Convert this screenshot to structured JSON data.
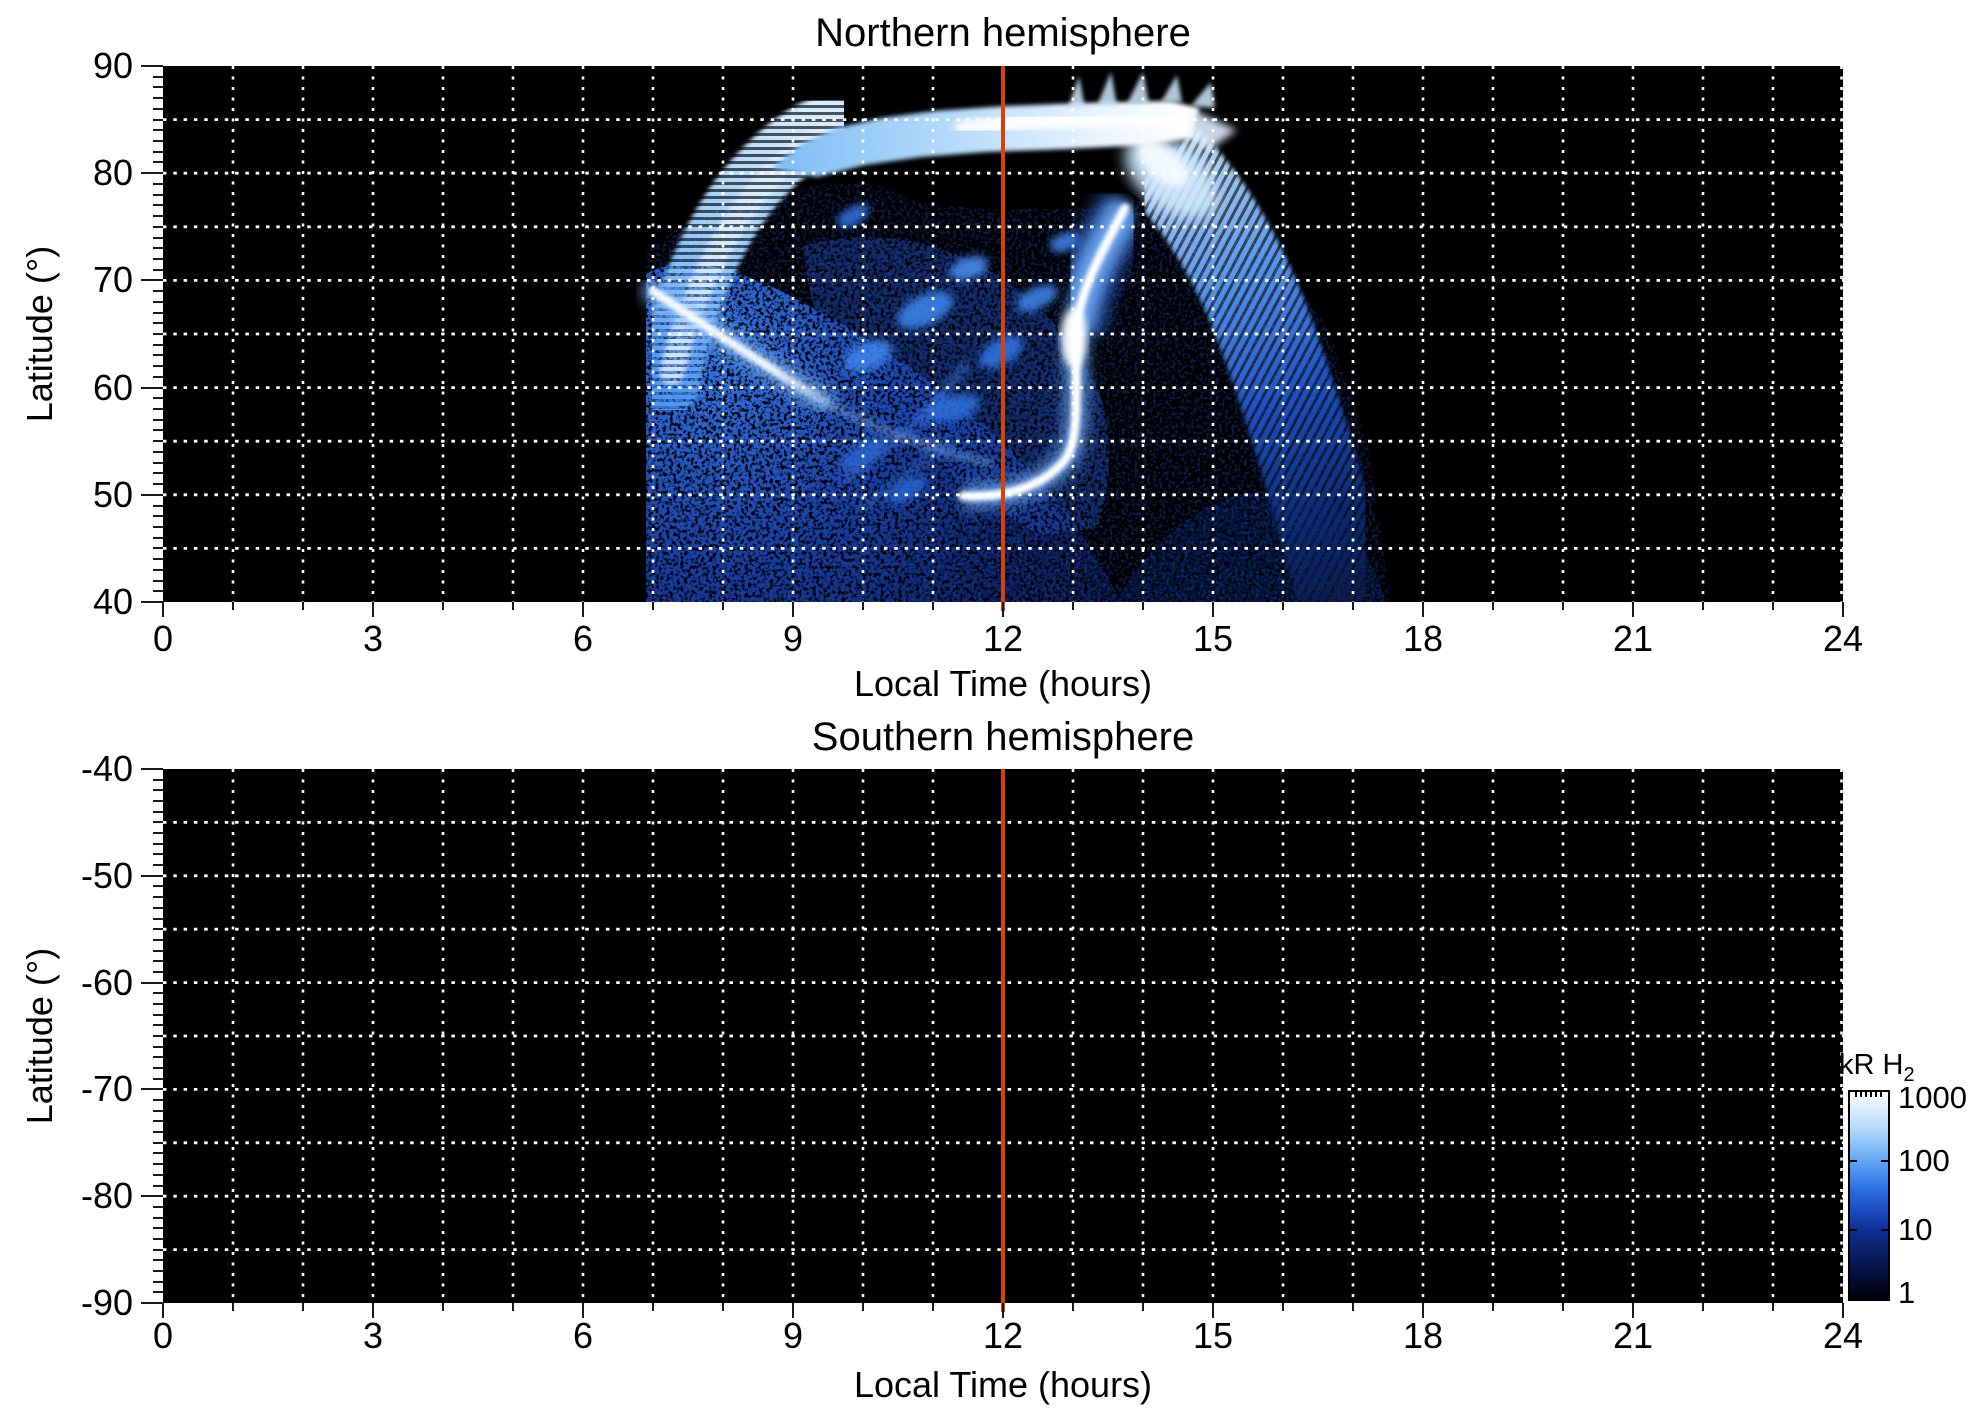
{
  "north": {
    "title": "Northern hemisphere",
    "xlabel": "Local Time (hours)",
    "ylabel": "Latitude (°)",
    "x_tick_labels": [
      "0",
      "3",
      "6",
      "9",
      "12",
      "15",
      "18",
      "21",
      "24"
    ],
    "y_tick_labels": [
      "90",
      "80",
      "70",
      "60",
      "50",
      "40"
    ]
  },
  "south": {
    "title": "Southern hemisphere",
    "xlabel": "Local Time (hours)",
    "ylabel": "Latitude (°)",
    "x_tick_labels": [
      "0",
      "3",
      "6",
      "9",
      "12",
      "15",
      "18",
      "21",
      "24"
    ],
    "y_tick_labels": [
      "-40",
      "-50",
      "-60",
      "-70",
      "-80",
      "-90"
    ]
  },
  "colorbar": {
    "title": "kR H",
    "title_subscript": "2",
    "tick_labels": [
      "1000",
      "100",
      "10",
      "1"
    ],
    "scale": "log",
    "min": 1,
    "max": 1000
  },
  "colors": {
    "background": "#ffffff",
    "plot_background": "#000000",
    "grid_dots": "#ffffff",
    "noon_line": "#d8400a",
    "text": "#000000"
  },
  "chart_data": [
    {
      "type": "heatmap",
      "title": "Northern hemisphere",
      "xlabel": "Local Time (hours)",
      "ylabel": "Latitude (°)",
      "xlim": [
        0,
        24
      ],
      "ylim": [
        40,
        90
      ],
      "x_ticks": [
        0,
        3,
        6,
        9,
        12,
        15,
        18,
        21,
        24
      ],
      "y_ticks": [
        90,
        80,
        70,
        60,
        50,
        40
      ],
      "grid": {
        "style": "dotted white",
        "x_spacing_hours": 1,
        "y_spacing_deg": 5
      },
      "colorbar": {
        "label": "kR H2",
        "scale": "log",
        "min": 1,
        "max": 1000
      },
      "annotations": [
        {
          "type": "vertical-line",
          "x_hours": 12,
          "color": "#d8400a"
        }
      ],
      "features": [
        {
          "name": "diffuse-emission-floor",
          "local_time_hours": [
            6.9,
            14.5
          ],
          "latitude_deg": [
            40,
            60
          ],
          "intensity_kR": "1-20",
          "texture": "speckled"
        },
        {
          "name": "dawn-fan-arc",
          "path": "(7.0 h, 62°) rising to (9.2 h, 85°)",
          "intensity_kR": "100-600",
          "texture": "latitudinal striations"
        },
        {
          "name": "bright-ridge",
          "path": "(7.3 h, 68°) to (9.5 h, 59°), faint continuation to (11.4 h, 51°)",
          "intensity_kR": "~1000"
        },
        {
          "name": "polar-cap-strip",
          "local_time_hours": [
            8.7,
            14.7
          ],
          "latitude_deg": [
            83,
            86.5
          ],
          "intensity_kR": "200-1000",
          "note": "white core 11-14 h, jagged striated edges"
        },
        {
          "name": "dark-polar-region",
          "local_time_hours": [
            10.0,
            14.0
          ],
          "latitude_deg": [
            77,
            83
          ],
          "intensity_kR": "<1"
        },
        {
          "name": "sinuous-arc",
          "path": "(11.4 h, 50°) up to (13.3 h, 77°)",
          "intensity_kR": "up to ~1000 near (13.0 h, 65°)"
        },
        {
          "name": "dusk-arc",
          "path": "(14.0 h, 82°) curving down to (17.2 h, 41°)",
          "intensity_kR": "10-300, brightest near (14.3 h, 80°)",
          "texture": "oblique striations"
        },
        {
          "name": "patchy-emission",
          "local_time_hours": [
            9.5,
            13.5
          ],
          "latitude_deg": [
            52,
            76
          ],
          "intensity_kR": "5-100"
        }
      ]
    },
    {
      "type": "heatmap",
      "title": "Southern hemisphere",
      "xlabel": "Local Time (hours)",
      "ylabel": "Latitude (°)",
      "xlim": [
        0,
        24
      ],
      "ylim": [
        -90,
        -40
      ],
      "x_ticks": [
        0,
        3,
        6,
        9,
        12,
        15,
        18,
        21,
        24
      ],
      "y_ticks": [
        -40,
        -50,
        -60,
        -70,
        -80,
        -90
      ],
      "grid": {
        "style": "dotted white",
        "x_spacing_hours": 1,
        "y_spacing_deg": 5
      },
      "colorbar": {
        "label": "kR H2",
        "scale": "log",
        "min": 1,
        "max": 1000
      },
      "annotations": [
        {
          "type": "vertical-line",
          "x_hours": 12,
          "color": "#d8400a"
        }
      ],
      "features": [],
      "note": "no emission visible; panel entirely black"
    }
  ]
}
